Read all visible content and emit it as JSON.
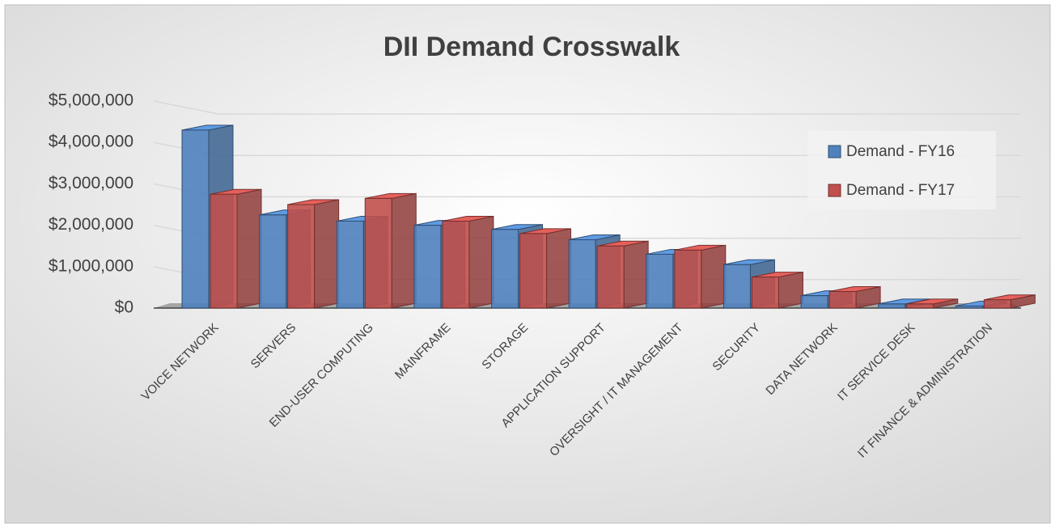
{
  "chart_data": {
    "type": "bar3d",
    "title": "DII Demand Crosswalk",
    "categories": [
      "VOICE NETWORK",
      "SERVERS",
      "END-USER COMPUTING",
      "MAINFRAME",
      "STORAGE",
      "APPLICATION SUPPORT",
      "OVERSIGHT / IT MANAGEMENT",
      "SECURITY",
      "DATA NETWORK",
      "IT SERVICE DESK",
      "IT FINANCE & ADMINISTRATION"
    ],
    "series": [
      {
        "name": "Demand - FY16",
        "color": "#4f81bd",
        "values": [
          4300000,
          2250000,
          2100000,
          2000000,
          1900000,
          1650000,
          1300000,
          1050000,
          300000,
          100000,
          50000
        ]
      },
      {
        "name": "Demand - FY17",
        "color": "#c0504d",
        "values": [
          2750000,
          2500000,
          2650000,
          2100000,
          1800000,
          1500000,
          1400000,
          750000,
          400000,
          100000,
          200000
        ]
      }
    ],
    "ylim": [
      0,
      5000000
    ],
    "yticks": [
      {
        "value": 0,
        "label": "$0"
      },
      {
        "value": 1000000,
        "label": "$1,000,000"
      },
      {
        "value": 2000000,
        "label": "$2,000,000"
      },
      {
        "value": 3000000,
        "label": "$3,000,000"
      },
      {
        "value": 4000000,
        "label": "$4,000,000"
      },
      {
        "value": 5000000,
        "label": "$5,000,000"
      }
    ],
    "grid": true,
    "legend": "right"
  }
}
